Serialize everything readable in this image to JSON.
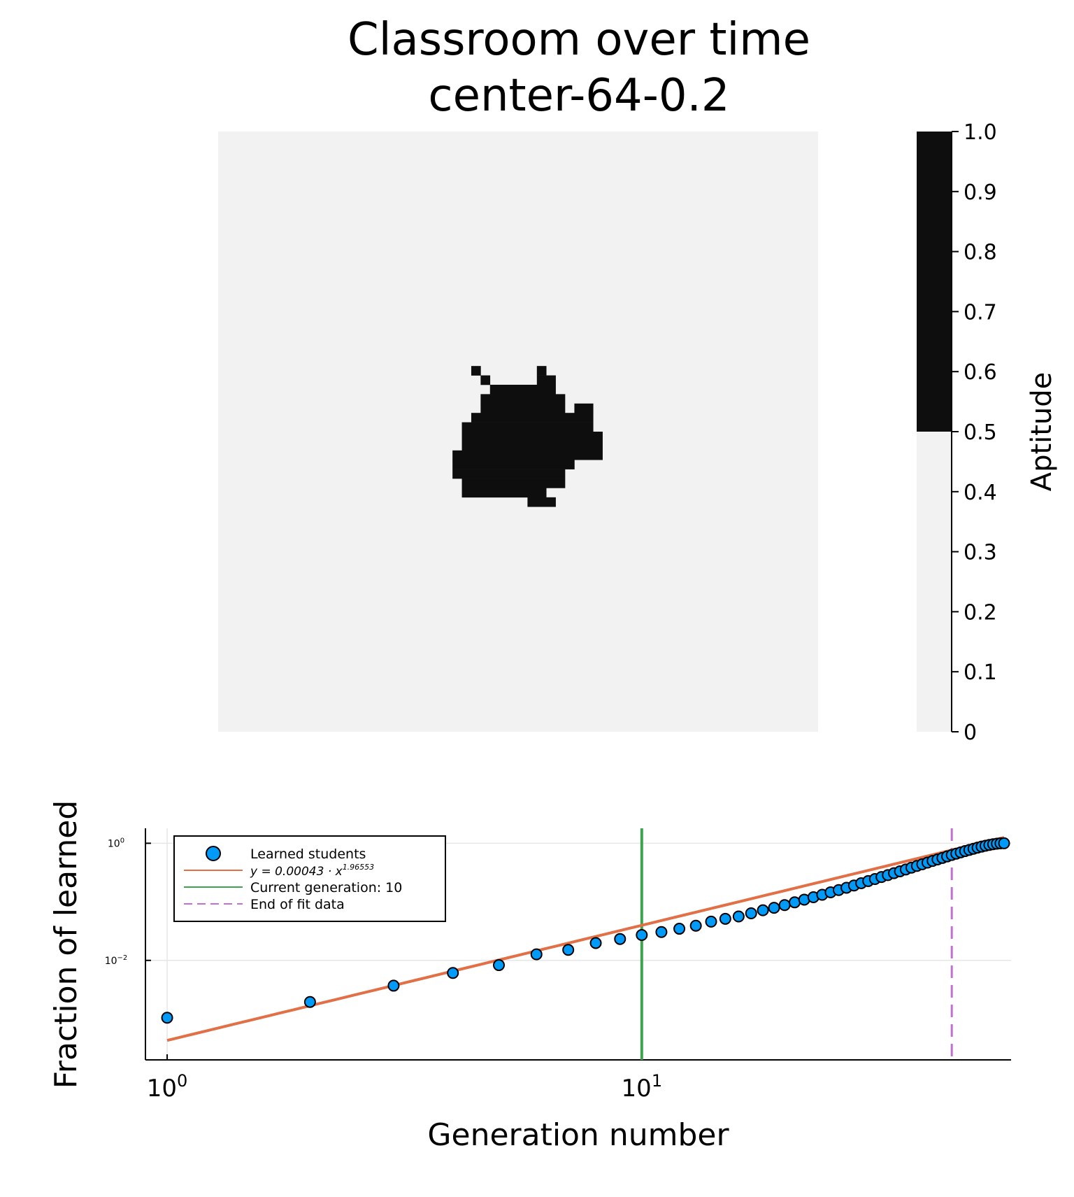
{
  "chart_data": [
    {
      "type": "heatmap",
      "title": "Classroom over time",
      "subtitle": "center-64-0.2",
      "grid_size": [
        64,
        64
      ],
      "colorbar": {
        "label": "Aptitude",
        "range": [
          0,
          1
        ],
        "ticks": [
          "0",
          "0.1",
          "0.2",
          "0.3",
          "0.4",
          "0.5",
          "0.6",
          "0.7",
          "0.8",
          "0.9",
          "1.0"
        ],
        "threshold": 0.5,
        "colors": {
          "low": "#f2f2f2",
          "high": "#0e0e0e"
        }
      },
      "learned_cells": [
        {
          "row": 25,
          "col": 27,
          "w": 1,
          "h": 1
        },
        {
          "row": 25,
          "col": 34,
          "w": 1,
          "h": 1
        },
        {
          "row": 26,
          "col": 28,
          "w": 1,
          "h": 1
        },
        {
          "row": 26,
          "col": 34,
          "w": 2,
          "h": 1
        },
        {
          "row": 27,
          "col": 29,
          "w": 7,
          "h": 1
        },
        {
          "row": 28,
          "col": 28,
          "w": 9,
          "h": 1
        },
        {
          "row": 29,
          "col": 28,
          "w": 9,
          "h": 1
        },
        {
          "row": 29,
          "col": 38,
          "w": 2,
          "h": 1
        },
        {
          "row": 30,
          "col": 27,
          "w": 13,
          "h": 1
        },
        {
          "row": 31,
          "col": 26,
          "w": 14,
          "h": 1
        },
        {
          "row": 32,
          "col": 26,
          "w": 15,
          "h": 1
        },
        {
          "row": 33,
          "col": 26,
          "w": 15,
          "h": 1
        },
        {
          "row": 34,
          "col": 25,
          "w": 16,
          "h": 1
        },
        {
          "row": 35,
          "col": 25,
          "w": 13,
          "h": 1
        },
        {
          "row": 36,
          "col": 25,
          "w": 12,
          "h": 1
        },
        {
          "row": 37,
          "col": 26,
          "w": 11,
          "h": 1
        },
        {
          "row": 38,
          "col": 26,
          "w": 9,
          "h": 1
        },
        {
          "row": 39,
          "col": 33,
          "w": 3,
          "h": 1
        }
      ]
    },
    {
      "type": "scatter",
      "xlabel": "Generation number",
      "ylabel": "Fraction of learned",
      "xscale": "log",
      "yscale": "log",
      "xlim": [
        0.9,
        60
      ],
      "ylim": [
        0.0002,
        1.8
      ],
      "x_ticks": [
        {
          "value": 1,
          "base": "10",
          "exp": "0"
        },
        {
          "value": 10,
          "base": "10",
          "exp": "1"
        }
      ],
      "y_ticks": [
        {
          "value": 0.01,
          "base": "10",
          "exp": "−2"
        },
        {
          "value": 1,
          "base": "10",
          "exp": "0"
        }
      ],
      "grid": true,
      "legend_position": "top-left",
      "series": [
        {
          "name": "Learned students",
          "kind": "scatter",
          "color": "#009af9",
          "x": [
            1,
            2,
            3,
            4,
            5,
            6,
            7,
            8,
            9,
            10,
            11,
            12,
            13,
            14,
            15,
            16,
            17,
            18,
            19,
            20,
            21,
            22,
            23,
            24,
            25,
            26,
            27,
            28,
            29,
            30,
            31,
            32,
            33,
            34,
            35,
            36,
            37,
            38,
            39,
            40,
            41,
            42,
            43,
            44,
            45,
            46,
            47,
            48,
            49,
            50,
            51,
            52,
            53,
            54,
            55,
            56,
            57,
            58
          ],
          "y": [
            0.00105,
            0.00195,
            0.0037,
            0.0061,
            0.0083,
            0.0127,
            0.0151,
            0.0198,
            0.0232,
            0.0271,
            0.0305,
            0.0347,
            0.0391,
            0.0459,
            0.0513,
            0.0562,
            0.0637,
            0.0718,
            0.079,
            0.088,
            0.098,
            0.109,
            0.1199,
            0.132,
            0.1455,
            0.159,
            0.174,
            0.19,
            0.208,
            0.226,
            0.245,
            0.265,
            0.286,
            0.309,
            0.332,
            0.357,
            0.383,
            0.41,
            0.438,
            0.468,
            0.499,
            0.53,
            0.562,
            0.596,
            0.63,
            0.665,
            0.7,
            0.735,
            0.77,
            0.806,
            0.842,
            0.876,
            0.908,
            0.937,
            0.962,
            0.982,
            0.995,
            1.0
          ]
        },
        {
          "name": "y = 0.00043 · x^1.96553",
          "kind": "fit",
          "color": "#e26f46",
          "coefficient": 0.00043,
          "exponent": 1.96553,
          "x_range": [
            1,
            58
          ]
        },
        {
          "name": "Current generation: 10",
          "kind": "vline",
          "color": "#3da44d",
          "x": 10
        },
        {
          "name": "End of fit data",
          "kind": "vline-dashed",
          "color": "#c271d2",
          "x": 45
        }
      ],
      "legend": {
        "learned": "Learned students",
        "fit_prefix": "y = 0.00043 · x",
        "fit_exp": "1.96553",
        "current": "Current generation: 10",
        "end_fit": "End of fit data"
      }
    }
  ]
}
